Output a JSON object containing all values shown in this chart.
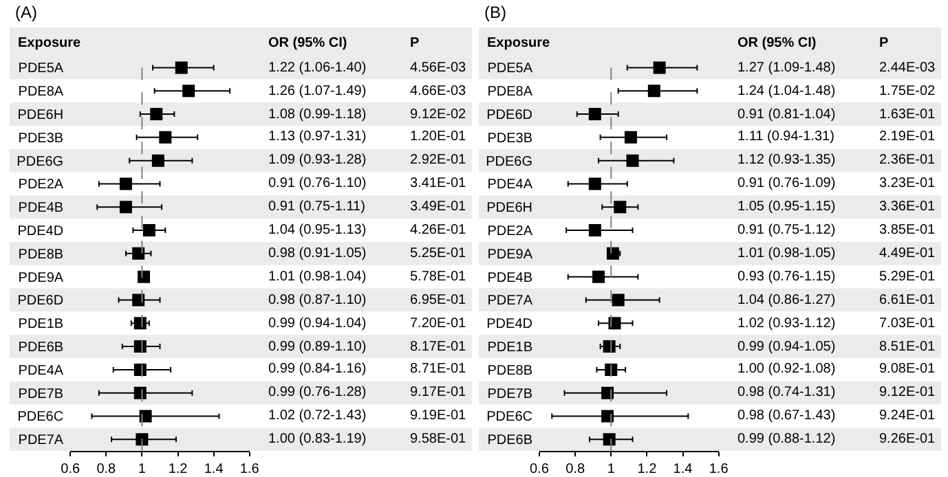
{
  "chart_data": [
    {
      "type": "scatter",
      "orientation": "horizontal",
      "title": "(A)",
      "ylabel": "Exposure",
      "marker": "square",
      "color": "#000000",
      "categories": [
        "PDE5A",
        "PDE8A",
        "PDE6H",
        "PDE3B",
        "PDE6G",
        "PDE2A",
        "PDE4B",
        "PDE4D",
        "PDE8B",
        "PDE9A",
        "PDE6D",
        "PDE1B",
        "PDE6B",
        "PDE4A",
        "PDE7B",
        "PDE6C",
        "PDE7A"
      ],
      "values": [
        1.22,
        1.26,
        1.08,
        1.13,
        1.09,
        0.91,
        0.91,
        1.04,
        0.98,
        1.01,
        0.98,
        0.99,
        0.99,
        0.99,
        0.99,
        1.02,
        1.0
      ],
      "errors": [
        [
          1.06,
          1.4
        ],
        [
          1.07,
          1.49
        ],
        [
          0.99,
          1.18
        ],
        [
          0.97,
          1.31
        ],
        [
          0.93,
          1.28
        ],
        [
          0.76,
          1.1
        ],
        [
          0.75,
          1.11
        ],
        [
          0.95,
          1.13
        ],
        [
          0.91,
          1.05
        ],
        [
          0.98,
          1.04
        ],
        [
          0.87,
          1.1
        ],
        [
          0.94,
          1.04
        ],
        [
          0.89,
          1.1
        ],
        [
          0.84,
          1.16
        ],
        [
          0.76,
          1.28
        ],
        [
          0.72,
          1.43
        ],
        [
          0.83,
          1.19
        ]
      ],
      "value_labels": [
        "1.22 (1.06-1.40)",
        "1.26 (1.07-1.49)",
        "1.08 (0.99-1.18)",
        "1.13 (0.97-1.31)",
        "1.09 (0.93-1.28)",
        "0.91 (0.76-1.10)",
        "0.91 (0.75-1.11)",
        "1.04 (0.95-1.13)",
        "0.98 (0.91-1.05)",
        "1.01 (0.98-1.04)",
        "0.98 (0.87-1.10)",
        "0.99 (0.94-1.04)",
        "0.99 (0.89-1.10)",
        "0.99 (0.84-1.16)",
        "0.99 (0.76-1.28)",
        "1.02 (0.72-1.43)",
        "1.00 (0.83-1.19)"
      ],
      "annotations": [
        "OR (95% CI)",
        "P",
        "4.56E-03",
        "4.66E-03",
        "9.12E-02",
        "1.20E-01",
        "2.92E-01",
        "3.41E-01",
        "3.49E-01",
        "4.26E-01",
        "5.25E-01",
        "5.78E-01",
        "6.95E-01",
        "7.20E-01",
        "8.17E-01",
        "8.71E-01",
        "9.17E-01",
        "9.19E-01",
        "9.58E-01"
      ],
      "xlim": [
        0.6,
        1.6
      ],
      "xticks": [
        0.6,
        0.8,
        1,
        1.2,
        1.4,
        1.6
      ],
      "ref_lines": [
        {
          "axis": "x",
          "value": 1,
          "line_style": "dashed",
          "color": "#808080"
        }
      ]
    },
    {
      "type": "scatter",
      "orientation": "horizontal",
      "title": "(B)",
      "ylabel": "Exposure",
      "marker": "square",
      "color": "#000000",
      "categories": [
        "PDE5A",
        "PDE8A",
        "PDE6D",
        "PDE3B",
        "PDE6G",
        "PDE4A",
        "PDE6H",
        "PDE2A",
        "PDE9A",
        "PDE4B",
        "PDE7A",
        "PDE4D",
        "PDE1B",
        "PDE8B",
        "PDE7B",
        "PDE6C",
        "PDE6B"
      ],
      "values": [
        1.27,
        1.24,
        0.91,
        1.11,
        1.12,
        0.91,
        1.05,
        0.91,
        1.01,
        0.93,
        1.04,
        1.02,
        0.99,
        1.0,
        0.98,
        0.98,
        0.99
      ],
      "errors": [
        [
          1.09,
          1.48
        ],
        [
          1.04,
          1.48
        ],
        [
          0.81,
          1.04
        ],
        [
          0.94,
          1.31
        ],
        [
          0.93,
          1.35
        ],
        [
          0.76,
          1.09
        ],
        [
          0.95,
          1.15
        ],
        [
          0.75,
          1.12
        ],
        [
          0.98,
          1.05
        ],
        [
          0.76,
          1.15
        ],
        [
          0.86,
          1.27
        ],
        [
          0.93,
          1.12
        ],
        [
          0.94,
          1.05
        ],
        [
          0.92,
          1.08
        ],
        [
          0.74,
          1.31
        ],
        [
          0.67,
          1.43
        ],
        [
          0.88,
          1.12
        ]
      ],
      "value_labels": [
        "1.27 (1.09-1.48)",
        "1.24 (1.04-1.48)",
        "0.91 (0.81-1.04)",
        "1.11 (0.94-1.31)",
        "1.12 (0.93-1.35)",
        "0.91 (0.76-1.09)",
        "1.05 (0.95-1.15)",
        "0.91 (0.75-1.12)",
        "1.01 (0.98-1.05)",
        "0.93 (0.76-1.15)",
        "1.04 (0.86-1.27)",
        "1.02 (0.93-1.12)",
        "0.99 (0.94-1.05)",
        "1.00 (0.92-1.08)",
        "0.98 (0.74-1.31)",
        "0.98 (0.67-1.43)",
        "0.99 (0.88-1.12)"
      ],
      "annotations": [
        "OR (95% CI)",
        "P",
        "2.44E-03",
        "1.75E-02",
        "1.63E-01",
        "2.19E-01",
        "2.36E-01",
        "3.23E-01",
        "3.36E-01",
        "3.85E-01",
        "4.49E-01",
        "5.29E-01",
        "6.61E-01",
        "7.03E-01",
        "8.51E-01",
        "9.08E-01",
        "9.12E-01",
        "9.24E-01",
        "9.26E-01"
      ],
      "xlim": [
        0.6,
        1.6
      ],
      "xticks": [
        0.6,
        0.8,
        1,
        1.2,
        1.4,
        1.6
      ],
      "ref_lines": [
        {
          "axis": "x",
          "value": 1,
          "line_style": "dashed",
          "color": "#808080"
        }
      ]
    }
  ]
}
